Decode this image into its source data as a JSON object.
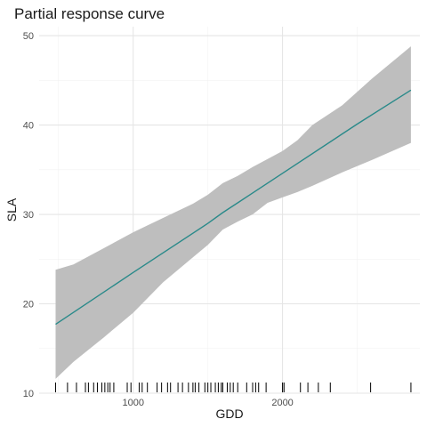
{
  "chart_data": {
    "type": "line",
    "title": "Partial response curve",
    "xlabel": "GDD",
    "ylabel": "SLA",
    "xlim": [
      370,
      2920
    ],
    "ylim": [
      10,
      51
    ],
    "x_ticks": [
      1000,
      2000
    ],
    "x_tick_labels": [
      "1000",
      "2000"
    ],
    "y_ticks": [
      10,
      20,
      30,
      40,
      50
    ],
    "y_tick_labels": [
      "10",
      "20",
      "30",
      "40",
      "50"
    ],
    "grid": true,
    "colors": {
      "line": "#2a8a8a",
      "ribbon": "#bebebe",
      "rug": "#000000",
      "grid_major": "#e5e5e5",
      "grid_minor": "#f2f2f2"
    },
    "series": [
      {
        "x": [
          480,
          1000,
          1500,
          1600,
          1700,
          1800,
          2000,
          2500,
          2860
        ],
        "y": [
          17.7,
          23.5,
          29.0,
          30.2,
          31.3,
          32.4,
          34.6,
          40.1,
          43.9
        ]
      }
    ],
    "ribbon": {
      "x": [
        480,
        600,
        800,
        1000,
        1200,
        1400,
        1500,
        1600,
        1700,
        1800,
        1900,
        2000,
        2100,
        2200,
        2400,
        2600,
        2860
      ],
      "lower": [
        11.6,
        13.5,
        16.2,
        19.0,
        22.4,
        25.2,
        26.6,
        28.3,
        29.2,
        30.0,
        31.3,
        31.9,
        32.5,
        33.2,
        34.7,
        36.1,
        38.0
      ],
      "upper": [
        23.8,
        24.4,
        26.2,
        28.0,
        29.6,
        31.2,
        32.2,
        33.5,
        34.3,
        35.3,
        36.2,
        37.1,
        38.3,
        40.0,
        42.2,
        45.2,
        48.8
      ]
    },
    "rug_x": [
      480,
      560,
      620,
      680,
      700,
      735,
      760,
      790,
      810,
      830,
      845,
      870,
      960,
      985,
      1040,
      1060,
      1095,
      1160,
      1190,
      1230,
      1250,
      1300,
      1330,
      1370,
      1400,
      1415,
      1440,
      1480,
      1500,
      1520,
      1550,
      1570,
      1590,
      1600,
      1630,
      1650,
      1670,
      1700,
      1760,
      1800,
      1820,
      1840,
      1890,
      2000,
      2010,
      2120,
      2170,
      2240,
      2320,
      2590,
      2860
    ]
  }
}
